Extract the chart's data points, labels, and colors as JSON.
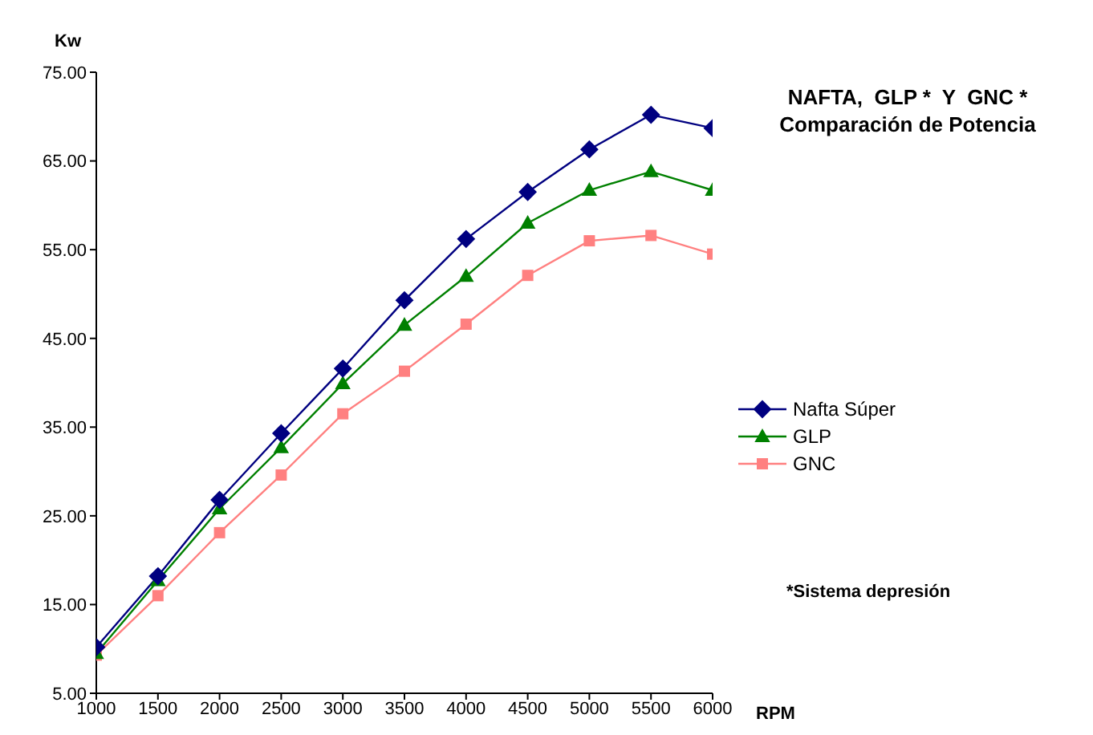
{
  "chart_data": {
    "type": "line",
    "title": "NAFTA,  GLP *  Y  GNC *\nComparación de Potencia",
    "xlabel": "RPM",
    "ylabel": "Kw",
    "annotations": [
      "*Sistema depresión"
    ],
    "x": [
      1000,
      1500,
      2000,
      2500,
      3000,
      3500,
      4000,
      4500,
      5000,
      5500,
      6000
    ],
    "series": [
      {
        "name": "Nafta Súper",
        "color": "#000080",
        "marker": "diamond",
        "values": [
          10.2,
          18.2,
          26.8,
          34.3,
          41.6,
          49.3,
          56.2,
          61.5,
          66.3,
          70.2,
          68.7
        ]
      },
      {
        "name": "GLP",
        "color": "#008000",
        "marker": "triangle",
        "values": [
          9.5,
          17.7,
          25.8,
          32.7,
          39.9,
          46.5,
          52.0,
          58.0,
          61.7,
          63.8,
          61.7
        ]
      },
      {
        "name": "GNC",
        "color": "#ff8080",
        "marker": "square",
        "values": [
          9.3,
          16.0,
          23.1,
          29.6,
          36.5,
          41.3,
          46.6,
          52.1,
          56.0,
          56.6,
          54.5
        ]
      }
    ],
    "xlim": [
      1000,
      6000
    ],
    "xticks": [
      1000,
      1500,
      2000,
      2500,
      3000,
      3500,
      4000,
      4500,
      5000,
      5500,
      6000
    ],
    "ylim": [
      5,
      75
    ],
    "yticks": [
      {
        "value": 5,
        "label": "5.00"
      },
      {
        "value": 15,
        "label": "15.00"
      },
      {
        "value": 25,
        "label": "25.00"
      },
      {
        "value": 35,
        "label": "35.00"
      },
      {
        "value": 45,
        "label": "45.00"
      },
      {
        "value": 55,
        "label": "55.00"
      },
      {
        "value": 65,
        "label": "65.00"
      },
      {
        "value": 75,
        "label": "75.00"
      }
    ],
    "grid": false,
    "legend": "right",
    "line_style": "solid"
  }
}
